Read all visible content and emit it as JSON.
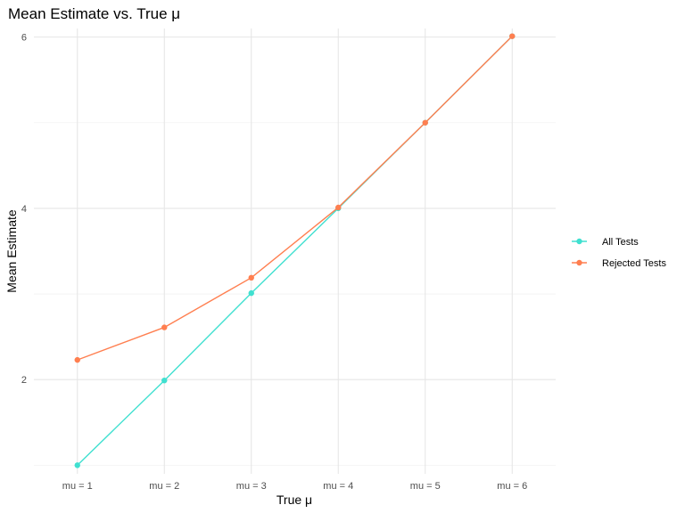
{
  "chart_data": {
    "type": "line",
    "title": "Mean Estimate vs. True μ",
    "xlabel": "True μ",
    "ylabel": "Mean Estimate",
    "categories": [
      "mu = 1",
      "mu = 2",
      "mu = 3",
      "mu = 4",
      "mu = 5",
      "mu = 6"
    ],
    "ylim": [
      0.9,
      6.1
    ],
    "yticks": [
      2,
      4,
      6
    ],
    "ytick_labels": [
      "2",
      "4",
      "6"
    ],
    "grid": true,
    "legend_position": "right",
    "series": [
      {
        "name": "All Tests",
        "color": "#40e0d0",
        "values": [
          1.0,
          1.99,
          3.01,
          4.0,
          5.0,
          6.01
        ]
      },
      {
        "name": "Rejected Tests",
        "color": "#ff7f50",
        "values": [
          2.23,
          2.61,
          3.19,
          4.01,
          5.0,
          6.01
        ]
      }
    ]
  }
}
